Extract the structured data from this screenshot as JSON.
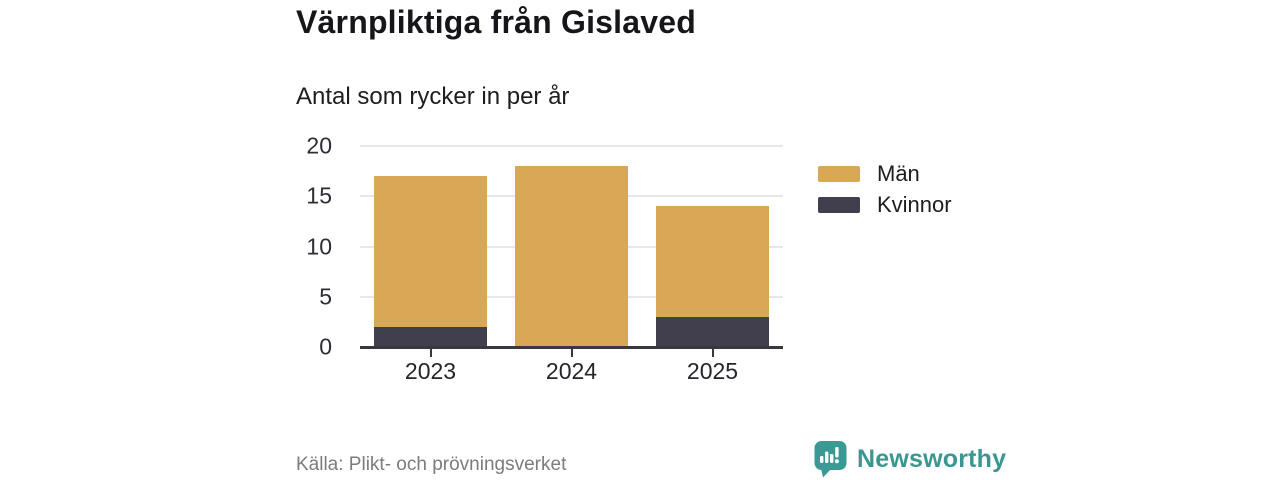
{
  "header": {
    "title": "Värnpliktiga från Gislaved",
    "subtitle": "Antal som rycker in per år"
  },
  "chart_data": {
    "type": "bar",
    "stacked": true,
    "categories": [
      "2023",
      "2024",
      "2025"
    ],
    "series": [
      {
        "name": "Män",
        "color": "#D9A854",
        "values": [
          15,
          18,
          11
        ]
      },
      {
        "name": "Kvinnor",
        "color": "#413E4E",
        "values": [
          2,
          0,
          3
        ]
      }
    ],
    "totals": [
      17,
      18,
      14
    ],
    "title": "Värnpliktiga från Gislaved",
    "subtitle": "Antal som rycker in per år",
    "xlabel": "",
    "ylabel": "",
    "ylim": [
      0,
      20
    ],
    "yticks": [
      0,
      5,
      10,
      15,
      20
    ],
    "grid": "horizontal",
    "legend_position": "right"
  },
  "footer": {
    "source": "Källa: Plikt- och prövningsverket",
    "logo_text": "Newsworthy"
  },
  "colors": {
    "bar_men": "#D9A854",
    "bar_women": "#413E4E",
    "axis": "#39373F",
    "gridline": "#E7E7E7",
    "brand_teal": "#399792",
    "source_gray": "#7B7B80"
  }
}
